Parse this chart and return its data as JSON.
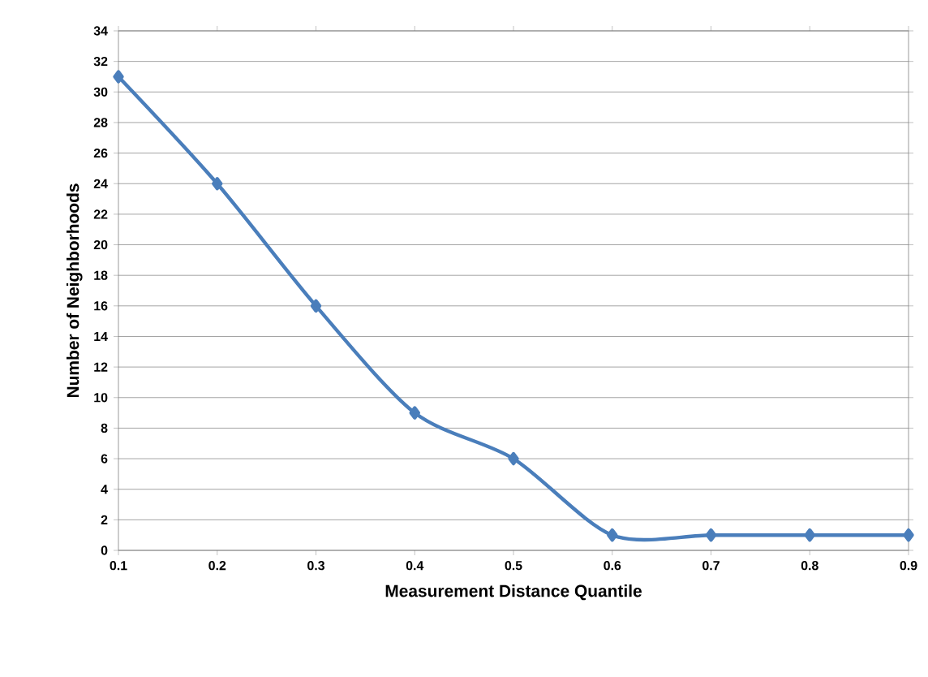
{
  "chart_data": {
    "type": "line",
    "xlabel": "Measurement Distance Quantile",
    "ylabel": "Number of Neighborhoods",
    "x": [
      0.1,
      0.2,
      0.3,
      0.4,
      0.5,
      0.6,
      0.7,
      0.8,
      0.9
    ],
    "series": [
      {
        "color": "#4a7ebb",
        "values": [
          31,
          24,
          16,
          9,
          6,
          1,
          1,
          1,
          1
        ]
      }
    ],
    "xlim": [
      0.1,
      0.9
    ],
    "xticks": [
      0.1,
      0.2,
      0.3,
      0.4,
      0.5,
      0.6,
      0.7,
      0.8,
      0.9
    ],
    "ylim": [
      0,
      34
    ],
    "yticks": [
      0,
      2,
      4,
      6,
      8,
      10,
      12,
      14,
      16,
      18,
      20,
      22,
      24,
      26,
      28,
      30,
      32,
      34
    ],
    "grid": "y",
    "marker": "diamond",
    "line_style": "solid"
  }
}
